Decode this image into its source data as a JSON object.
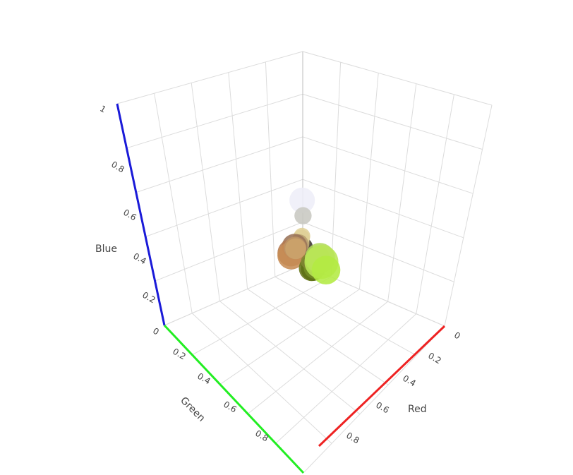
{
  "chart_data": {
    "type": "scatter",
    "mode": "3d",
    "title": "",
    "axes": {
      "x": {
        "label": "Red",
        "range": [
          0,
          1
        ],
        "tick_labels": [
          "0",
          "0.2",
          "0.4",
          "0.6",
          "0.8"
        ],
        "color": "#ee2222"
      },
      "y": {
        "label": "Green",
        "range": [
          0,
          1
        ],
        "tick_labels": [
          "0.2",
          "0.4",
          "0.6",
          "0.8"
        ],
        "color": "#22ee22"
      },
      "z": {
        "label": "Blue",
        "range": [
          0,
          1
        ],
        "tick_labels": [
          "0",
          "0.2",
          "0.4",
          "0.6",
          "0.8",
          "1"
        ],
        "color": "#1a1ad8"
      }
    },
    "grid": true,
    "legend": "none",
    "points": [
      {
        "r": 0.94,
        "g": 0.94,
        "b": 0.98,
        "size": 0.55,
        "color": "#eeeef8"
      },
      {
        "r": 0.78,
        "g": 0.78,
        "b": 0.76,
        "size": 0.28,
        "color": "#c8c8c2"
      },
      {
        "r": 0.24,
        "g": 0.22,
        "b": 0.2,
        "size": 0.45,
        "color": "#3d3833"
      },
      {
        "r": 0.32,
        "g": 0.28,
        "b": 0.24,
        "size": 0.38,
        "color": "#52483e"
      },
      {
        "r": 0.42,
        "g": 0.36,
        "b": 0.29,
        "size": 0.34,
        "color": "#6b5c4a"
      },
      {
        "r": 0.55,
        "g": 0.48,
        "b": 0.36,
        "size": 0.32,
        "color": "#8c7a5c"
      },
      {
        "r": 0.65,
        "g": 0.58,
        "b": 0.42,
        "size": 0.3,
        "color": "#a6946b"
      },
      {
        "r": 0.76,
        "g": 0.68,
        "b": 0.48,
        "size": 0.3,
        "color": "#c2ad7a"
      },
      {
        "r": 0.84,
        "g": 0.77,
        "b": 0.56,
        "size": 0.28,
        "color": "#d6c48f"
      },
      {
        "r": 0.88,
        "g": 0.82,
        "b": 0.6,
        "size": 0.26,
        "color": "#e0d199"
      },
      {
        "r": 0.72,
        "g": 0.62,
        "b": 0.44,
        "size": 0.36,
        "color": "#b89e70"
      },
      {
        "r": 0.6,
        "g": 0.45,
        "b": 0.35,
        "size": 0.55,
        "color": "#9a7359"
      },
      {
        "r": 0.7,
        "g": 0.48,
        "b": 0.32,
        "size": 0.6,
        "color": "#b37a52"
      },
      {
        "r": 0.78,
        "g": 0.55,
        "b": 0.33,
        "size": 0.62,
        "color": "#c78c54"
      },
      {
        "r": 0.74,
        "g": 0.58,
        "b": 0.4,
        "size": 0.45,
        "color": "#bd9466"
      },
      {
        "r": 0.8,
        "g": 0.64,
        "b": 0.42,
        "size": 0.4,
        "color": "#cca36b"
      },
      {
        "r": 0.4,
        "g": 0.46,
        "b": 0.1,
        "size": 0.55,
        "color": "#66751a"
      },
      {
        "r": 0.36,
        "g": 0.44,
        "b": 0.08,
        "size": 0.5,
        "color": "#5c7014"
      },
      {
        "r": 0.45,
        "g": 0.55,
        "b": 0.14,
        "size": 0.45,
        "color": "#738c24"
      },
      {
        "r": 0.52,
        "g": 0.62,
        "b": 0.22,
        "size": 0.4,
        "color": "#859e38"
      },
      {
        "r": 0.58,
        "g": 0.7,
        "b": 0.3,
        "size": 0.38,
        "color": "#94b34d"
      },
      {
        "r": 0.5,
        "g": 0.52,
        "b": 0.2,
        "size": 0.22,
        "color": "#808533"
      },
      {
        "r": 0.66,
        "g": 0.8,
        "b": 0.34,
        "size": 0.48,
        "color": "#a8cc57"
      },
      {
        "r": 0.7,
        "g": 0.86,
        "b": 0.36,
        "size": 0.7,
        "color": "#b3db5c"
      },
      {
        "r": 0.73,
        "g": 0.9,
        "b": 0.34,
        "size": 0.82,
        "color": "#bae657"
      },
      {
        "r": 0.7,
        "g": 0.92,
        "b": 0.26,
        "size": 0.65,
        "color": "#b3eb42"
      }
    ]
  }
}
